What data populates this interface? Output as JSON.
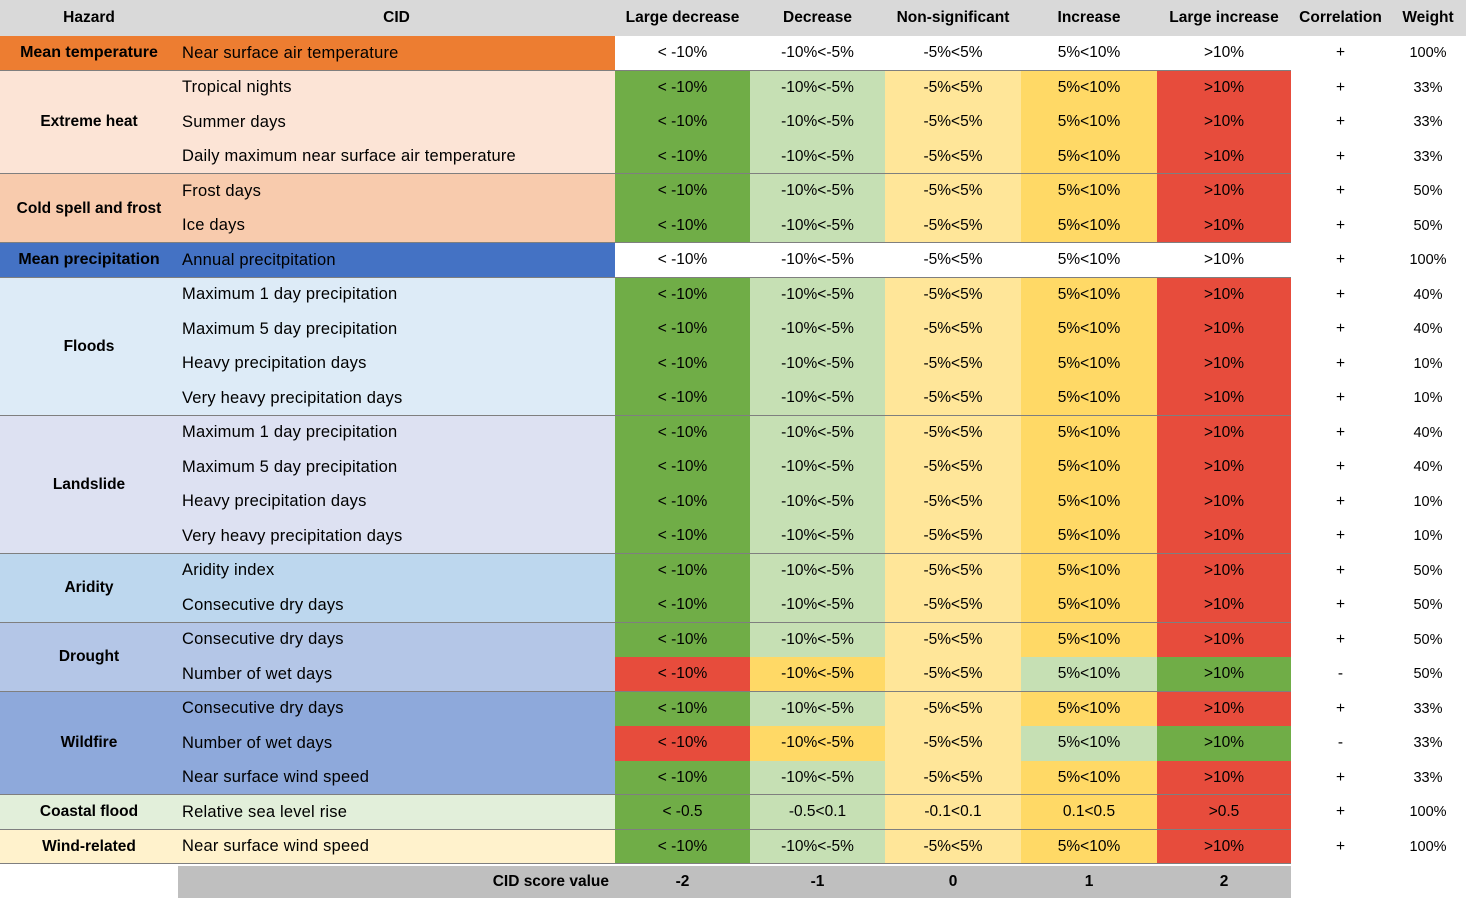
{
  "headers": {
    "hazard": "Hazard",
    "cid": "CID",
    "large_decrease": "Large decrease",
    "decrease": "Decrease",
    "non_significant": "Non-significant",
    "increase": "Increase",
    "large_increase": "Large increase",
    "correlation": "Correlation",
    "weight": "Weight"
  },
  "colors": {
    "header_bg": "#d9d9d9",
    "dark_green": "#70ad47",
    "light_green": "#c6e0b4",
    "light_yellow": "#ffe699",
    "yellow": "#ffd966",
    "red": "#e74c3c",
    "mean_temperature": "#ed7d31",
    "extreme_heat": "#fce4d6",
    "cold_spell": "#f8cbad",
    "mean_precipitation": "#4472c4",
    "floods": "#ddebf7",
    "landslide": "#dde1f2",
    "aridity": "#bdd7ee",
    "drought": "#b4c6e7",
    "wildfire": "#8ea9db",
    "coastal_flood": "#e2efda",
    "wind_related": "#fff2cc",
    "footer_bg": "#bfbfbf"
  },
  "groups": [
    {
      "hazard": "Mean temperature",
      "color_key": "mean_temperature",
      "rows": [
        {
          "cid": "Near surface air temperature",
          "values": [
            "< -10%",
            "-10%<-5%",
            "-5%<5%",
            "5%<10%",
            ">10%"
          ],
          "colored": false,
          "correlation": "+",
          "weight": "100%"
        }
      ]
    },
    {
      "hazard": "Extreme heat",
      "color_key": "extreme_heat",
      "rows": [
        {
          "cid": "Tropical nights",
          "values": [
            "< -10%",
            "-10%<-5%",
            "-5%<5%",
            "5%<10%",
            ">10%"
          ],
          "colored": true,
          "inverse": false,
          "correlation": "+",
          "weight": "33%"
        },
        {
          "cid": "Summer days",
          "values": [
            "< -10%",
            "-10%<-5%",
            "-5%<5%",
            "5%<10%",
            ">10%"
          ],
          "colored": true,
          "inverse": false,
          "correlation": "+",
          "weight": "33%"
        },
        {
          "cid": "Daily maximum near surface air temperature",
          "values": [
            "< -10%",
            "-10%<-5%",
            "-5%<5%",
            "5%<10%",
            ">10%"
          ],
          "colored": true,
          "inverse": false,
          "correlation": "+",
          "weight": "33%"
        }
      ]
    },
    {
      "hazard": "Cold spell and frost",
      "color_key": "cold_spell",
      "rows": [
        {
          "cid": "Frost days",
          "values": [
            "< -10%",
            "-10%<-5%",
            "-5%<5%",
            "5%<10%",
            ">10%"
          ],
          "colored": true,
          "inverse": false,
          "correlation": "+",
          "weight": "50%"
        },
        {
          "cid": "Ice days",
          "values": [
            "< -10%",
            "-10%<-5%",
            "-5%<5%",
            "5%<10%",
            ">10%"
          ],
          "colored": true,
          "inverse": false,
          "correlation": "+",
          "weight": "50%"
        }
      ]
    },
    {
      "hazard": "Mean precipitation",
      "color_key": "mean_precipitation",
      "rows": [
        {
          "cid": "Annual precitpitation",
          "values": [
            "< -10%",
            "-10%<-5%",
            "-5%<5%",
            "5%<10%",
            ">10%"
          ],
          "colored": false,
          "correlation": "+",
          "weight": "100%"
        }
      ]
    },
    {
      "hazard": "Floods",
      "color_key": "floods",
      "rows": [
        {
          "cid": "Maximum 1 day precipitation",
          "values": [
            "< -10%",
            "-10%<-5%",
            "-5%<5%",
            "5%<10%",
            ">10%"
          ],
          "colored": true,
          "inverse": false,
          "correlation": "+",
          "weight": "40%"
        },
        {
          "cid": "Maximum 5 day precipitation",
          "values": [
            "< -10%",
            "-10%<-5%",
            "-5%<5%",
            "5%<10%",
            ">10%"
          ],
          "colored": true,
          "inverse": false,
          "correlation": "+",
          "weight": "40%"
        },
        {
          "cid": "Heavy precipitation days",
          "values": [
            "< -10%",
            "-10%<-5%",
            "-5%<5%",
            "5%<10%",
            ">10%"
          ],
          "colored": true,
          "inverse": false,
          "correlation": "+",
          "weight": "10%"
        },
        {
          "cid": "Very heavy precipitation days",
          "values": [
            "< -10%",
            "-10%<-5%",
            "-5%<5%",
            "5%<10%",
            ">10%"
          ],
          "colored": true,
          "inverse": false,
          "correlation": "+",
          "weight": "10%"
        }
      ]
    },
    {
      "hazard": "Landslide",
      "color_key": "landslide",
      "rows": [
        {
          "cid": "Maximum 1 day precipitation",
          "values": [
            "< -10%",
            "-10%<-5%",
            "-5%<5%",
            "5%<10%",
            ">10%"
          ],
          "colored": true,
          "inverse": false,
          "correlation": "+",
          "weight": "40%"
        },
        {
          "cid": "Maximum 5 day precipitation",
          "values": [
            "< -10%",
            "-10%<-5%",
            "-5%<5%",
            "5%<10%",
            ">10%"
          ],
          "colored": true,
          "inverse": false,
          "correlation": "+",
          "weight": "40%"
        },
        {
          "cid": "Heavy precipitation days",
          "values": [
            "< -10%",
            "-10%<-5%",
            "-5%<5%",
            "5%<10%",
            ">10%"
          ],
          "colored": true,
          "inverse": false,
          "correlation": "+",
          "weight": "10%"
        },
        {
          "cid": "Very heavy precipitation days",
          "values": [
            "< -10%",
            "-10%<-5%",
            "-5%<5%",
            "5%<10%",
            ">10%"
          ],
          "colored": true,
          "inverse": false,
          "correlation": "+",
          "weight": "10%"
        }
      ]
    },
    {
      "hazard": "Aridity",
      "color_key": "aridity",
      "rows": [
        {
          "cid": "Aridity index",
          "values": [
            "< -10%",
            "-10%<-5%",
            "-5%<5%",
            "5%<10%",
            ">10%"
          ],
          "colored": true,
          "inverse": false,
          "correlation": "+",
          "weight": "50%"
        },
        {
          "cid": "Consecutive dry days",
          "values": [
            "< -10%",
            "-10%<-5%",
            "-5%<5%",
            "5%<10%",
            ">10%"
          ],
          "colored": true,
          "inverse": false,
          "correlation": "+",
          "weight": "50%"
        }
      ]
    },
    {
      "hazard": "Drought",
      "color_key": "drought",
      "rows": [
        {
          "cid": "Consecutive dry days",
          "values": [
            "< -10%",
            "-10%<-5%",
            "-5%<5%",
            "5%<10%",
            ">10%"
          ],
          "colored": true,
          "inverse": false,
          "correlation": "+",
          "weight": "50%"
        },
        {
          "cid": "Number of wet days",
          "values": [
            "< -10%",
            "-10%<-5%",
            "-5%<5%",
            "5%<10%",
            ">10%"
          ],
          "colored": true,
          "inverse": true,
          "correlation": "-",
          "weight": "50%"
        }
      ]
    },
    {
      "hazard": "Wildfire",
      "color_key": "wildfire",
      "rows": [
        {
          "cid": "Consecutive dry days",
          "values": [
            "< -10%",
            "-10%<-5%",
            "-5%<5%",
            "5%<10%",
            ">10%"
          ],
          "colored": true,
          "inverse": false,
          "correlation": "+",
          "weight": "33%"
        },
        {
          "cid": "Number of wet days",
          "values": [
            "< -10%",
            "-10%<-5%",
            "-5%<5%",
            "5%<10%",
            ">10%"
          ],
          "colored": true,
          "inverse": true,
          "correlation": "-",
          "weight": "33%"
        },
        {
          "cid": "Near surface wind speed",
          "values": [
            "< -10%",
            "-10%<-5%",
            "-5%<5%",
            "5%<10%",
            ">10%"
          ],
          "colored": true,
          "inverse": false,
          "correlation": "+",
          "weight": "33%"
        }
      ]
    },
    {
      "hazard": "Coastal flood",
      "color_key": "coastal_flood",
      "rows": [
        {
          "cid": "Relative sea level rise",
          "values": [
            "< -0.5",
            "-0.5<0.1",
            "-0.1<0.1",
            "0.1<0.5",
            ">0.5"
          ],
          "colored": true,
          "inverse": false,
          "correlation": "+",
          "weight": "100%"
        }
      ]
    },
    {
      "hazard": "Wind-related",
      "color_key": "wind_related",
      "rows": [
        {
          "cid": "Near surface wind speed",
          "values": [
            "< -10%",
            "-10%<-5%",
            "-5%<5%",
            "5%<10%",
            ">10%"
          ],
          "colored": true,
          "inverse": false,
          "correlation": "+",
          "weight": "100%"
        }
      ]
    }
  ],
  "footer": {
    "label": "CID score value",
    "scores": [
      "-2",
      "-1",
      "0",
      "1",
      "2"
    ]
  }
}
